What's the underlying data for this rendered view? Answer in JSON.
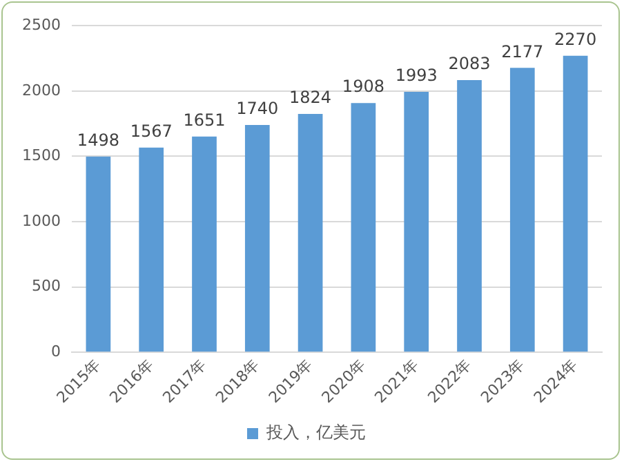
{
  "chart_data": {
    "type": "bar",
    "categories": [
      "2015年",
      "2016年",
      "2017年",
      "2018年",
      "2019年",
      "2020年",
      "2021年",
      "2022年",
      "2023年",
      "2024年"
    ],
    "series": [
      {
        "name": "投入，亿美元",
        "color": "#5b9bd5",
        "values": [
          1498,
          1567,
          1651,
          1740,
          1824,
          1908,
          1993,
          2083,
          2177,
          2270
        ]
      }
    ],
    "ylim": [
      0,
      2500
    ],
    "yticks": [
      0,
      500,
      1000,
      1500,
      2000,
      2500
    ],
    "grid": "y",
    "legend": "bottom",
    "data_labels": true
  }
}
